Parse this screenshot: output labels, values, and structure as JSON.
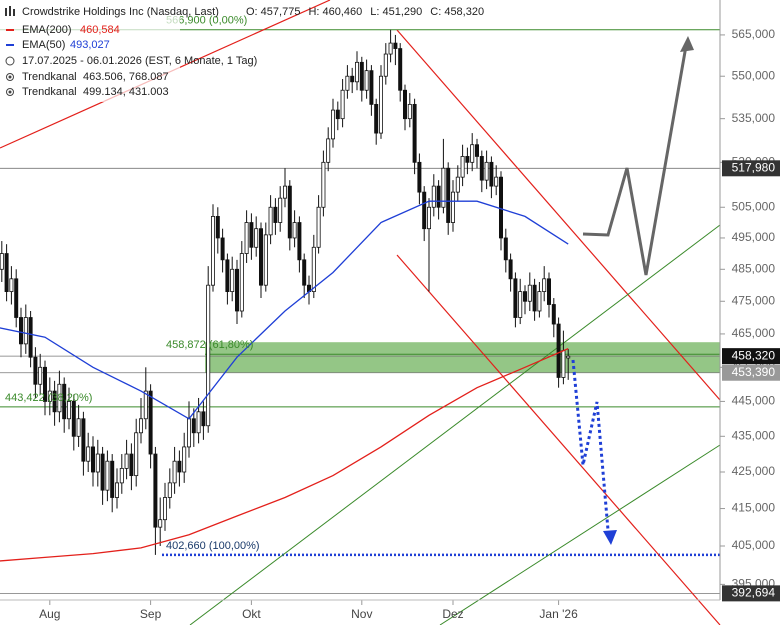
{
  "chart_data": {
    "type": "candlestick",
    "title": "Crowdstrike Holdings Inc (Nasdaq, Last)",
    "ohlc_labels": [
      "O: 457,775",
      "H: 460,460",
      "L: 451,290",
      "C: 458,320"
    ],
    "info": "17.07.2025 - 06.01.2026  (EST, 6 Monate, 1 Tag)",
    "trend_channels": [
      {
        "name": "Trendkanal",
        "label": "463.506, 768.087"
      },
      {
        "name": "Trendkanal",
        "label": "499.134, 431.003"
      }
    ],
    "log_scale": true,
    "ylim": [
      391000,
      578000
    ],
    "yticks": [
      {
        "value": 565000,
        "label": "565,000"
      },
      {
        "value": 550000,
        "label": "550,000"
      },
      {
        "value": 535000,
        "label": "535,000"
      },
      {
        "value": 520000,
        "label": "520,000"
      },
      {
        "value": 505000,
        "label": "505,000"
      },
      {
        "value": 495000,
        "label": "495,000"
      },
      {
        "value": 485000,
        "label": "485,000"
      },
      {
        "value": 475000,
        "label": "475,000"
      },
      {
        "value": 465000,
        "label": "465,000"
      },
      {
        "value": 455000,
        "label": "455,000"
      },
      {
        "value": 445000,
        "label": "445,000"
      },
      {
        "value": 435000,
        "label": "435,000"
      },
      {
        "value": 425000,
        "label": "425,000"
      },
      {
        "value": 415000,
        "label": "415,000"
      },
      {
        "value": 405000,
        "label": "405,000"
      },
      {
        "value": 395000,
        "label": "395,000"
      }
    ],
    "xticks": [
      {
        "value": 11,
        "label": "Aug"
      },
      {
        "value": 32,
        "label": "Sep"
      },
      {
        "value": 53,
        "label": "Okt"
      },
      {
        "value": 76,
        "label": "Nov"
      },
      {
        "value": 95,
        "label": "Dez"
      },
      {
        "value": 117,
        "label": "Jan '26"
      }
    ],
    "candles": {
      "open": [
        480000,
        485000,
        490000,
        478000,
        482000,
        470000,
        462000,
        470000,
        458000,
        450000,
        455000,
        445000,
        448000,
        442000,
        450000,
        440000,
        445000,
        435000,
        440000,
        428000,
        432000,
        425000,
        430000,
        420000,
        428000,
        418000,
        422000,
        426000,
        430000,
        424000,
        436000,
        440000,
        448000,
        430000,
        410000,
        412000,
        418000,
        422000,
        428000,
        425000,
        432000,
        440000,
        436000,
        442000,
        438000,
        480000,
        502000,
        495000,
        488000,
        478000,
        485000,
        472000,
        490000,
        500000,
        492000,
        498000,
        480000,
        496000,
        505000,
        500000,
        508000,
        512000,
        495000,
        500000,
        488000,
        480000,
        478000,
        492000,
        505000,
        520000,
        528000,
        538000,
        535000,
        545000,
        550000,
        548000,
        555000,
        545000,
        552000,
        540000,
        530000,
        550000,
        558000,
        562000,
        560000,
        545000,
        535000,
        540000,
        520000,
        510000,
        498000,
        505000,
        512000,
        505000,
        518000,
        500000,
        510000,
        515000,
        522000,
        520000,
        526000,
        522000,
        514000,
        520000,
        512000,
        515000,
        495000,
        488000,
        482000,
        470000,
        478000,
        475000,
        480000,
        472000,
        478000,
        482000,
        474000,
        468000,
        452000,
        457775
      ],
      "high": [
        489000,
        494000,
        493000,
        486000,
        485000,
        473000,
        474000,
        472000,
        461000,
        459000,
        457000,
        452000,
        451000,
        454000,
        452000,
        449000,
        447000,
        444000,
        442000,
        436000,
        435000,
        434000,
        432000,
        431000,
        430000,
        426000,
        430000,
        434000,
        433000,
        440000,
        446000,
        455000,
        450000,
        432000,
        418000,
        422000,
        426000,
        432000,
        431000,
        436000,
        445000,
        443000,
        446000,
        445000,
        486000,
        506000,
        505000,
        498000,
        490000,
        489000,
        488000,
        494000,
        504000,
        503000,
        502000,
        500000,
        500000,
        509000,
        508000,
        512000,
        518000,
        514000,
        504000,
        502000,
        490000,
        483000,
        496000,
        509000,
        524000,
        532000,
        542000,
        541000,
        549000,
        554000,
        553000,
        559000,
        557000,
        556000,
        554000,
        542000,
        554000,
        562000,
        566900,
        565000,
        562000,
        547000,
        544000,
        542000,
        523000,
        512000,
        508000,
        516000,
        514000,
        528000,
        520000,
        514000,
        519000,
        526000,
        525000,
        530000,
        528000,
        524000,
        524000,
        522000,
        519000,
        517000,
        498000,
        490000,
        484000,
        482000,
        480000,
        484000,
        482000,
        481000,
        486000,
        484000,
        476000,
        470000,
        466000,
        460460
      ],
      "low": [
        476000,
        481000,
        475000,
        474000,
        467000,
        458000,
        459000,
        455000,
        446000,
        447000,
        441000,
        441000,
        438000,
        439000,
        436000,
        437000,
        431000,
        432000,
        424000,
        425000,
        421000,
        421000,
        416000,
        417000,
        414000,
        415000,
        419000,
        423000,
        420000,
        421000,
        433000,
        437000,
        426000,
        402660,
        405000,
        409000,
        415000,
        419000,
        421000,
        422000,
        429000,
        432000,
        433000,
        434000,
        436000,
        478000,
        490000,
        484000,
        474000,
        475000,
        468000,
        470000,
        487000,
        488000,
        489000,
        476000,
        478000,
        493000,
        496000,
        497000,
        505000,
        491000,
        492000,
        484000,
        476000,
        474000,
        476000,
        490000,
        502000,
        517000,
        525000,
        531000,
        532000,
        542000,
        544000,
        545000,
        541000,
        542000,
        536000,
        526000,
        528000,
        547000,
        555000,
        554000,
        541000,
        531000,
        532000,
        516000,
        506000,
        494000,
        478000,
        502000,
        501000,
        503000,
        496000,
        497000,
        507000,
        512000,
        516000,
        517000,
        518000,
        510000,
        511000,
        508000,
        509000,
        491000,
        484000,
        478000,
        467000,
        468000,
        471000,
        472000,
        469000,
        470000,
        475000,
        470000,
        464000,
        449000,
        450000,
        451290
      ],
      "close": [
        485000,
        490000,
        478000,
        482000,
        470000,
        462000,
        470000,
        458000,
        450000,
        455000,
        445000,
        448000,
        442000,
        450000,
        440000,
        445000,
        435000,
        440000,
        428000,
        432000,
        425000,
        430000,
        420000,
        428000,
        418000,
        422000,
        426000,
        430000,
        424000,
        436000,
        440000,
        448000,
        430000,
        410000,
        412000,
        418000,
        422000,
        428000,
        425000,
        432000,
        440000,
        436000,
        442000,
        438000,
        480000,
        502000,
        495000,
        488000,
        478000,
        485000,
        472000,
        490000,
        500000,
        492000,
        498000,
        480000,
        496000,
        505000,
        500000,
        508000,
        512000,
        495000,
        500000,
        488000,
        480000,
        478000,
        492000,
        505000,
        520000,
        528000,
        538000,
        535000,
        545000,
        550000,
        548000,
        555000,
        545000,
        552000,
        540000,
        530000,
        550000,
        558000,
        562000,
        560000,
        545000,
        535000,
        540000,
        520000,
        510000,
        498000,
        505000,
        512000,
        505000,
        518000,
        500000,
        510000,
        515000,
        522000,
        520000,
        526000,
        522000,
        514000,
        520000,
        512000,
        515000,
        495000,
        488000,
        482000,
        470000,
        478000,
        475000,
        480000,
        472000,
        478000,
        482000,
        474000,
        468000,
        452000,
        460000,
        458320
      ]
    },
    "series": [
      {
        "name": "EMA(200)",
        "value_label": "460,584",
        "color": "#e3201b",
        "x": [
          0,
          10,
          20,
          30,
          40,
          50,
          60,
          70,
          80,
          90,
          100,
          110,
          119
        ],
        "values": [
          401000,
          402000,
          403000,
          404500,
          408000,
          413000,
          418000,
          424000,
          432000,
          441000,
          449000,
          455000,
          460584
        ]
      },
      {
        "name": "EMA(50)",
        "value_label": "493,027",
        "color": "#1f3fd6",
        "x": [
          0,
          10,
          20,
          30,
          40,
          50,
          60,
          70,
          80,
          90,
          100,
          110,
          119
        ],
        "values": [
          467000,
          464000,
          455000,
          448000,
          440000,
          458000,
          472000,
          484000,
          500000,
          507000,
          507000,
          502000,
          493027
        ]
      }
    ],
    "zone": [
      453390,
      462500
    ],
    "fib_levels": [
      {
        "value": 566900,
        "label": "566,900 (0,00%)"
      },
      {
        "value": 458872,
        "label": "458,872 (61,80%)"
      },
      {
        "value": 443422,
        "label": "443,422 (38,20%)"
      },
      {
        "value": 402660,
        "label": "402,660 (100,00%)"
      }
    ],
    "price_levels": [
      {
        "value": 517980,
        "label": "517,980"
      },
      {
        "value": 453390,
        "label": "453,390"
      },
      {
        "value": 458320,
        "label": "458,320"
      },
      {
        "value": 392694,
        "label": "392,694"
      }
    ]
  }
}
